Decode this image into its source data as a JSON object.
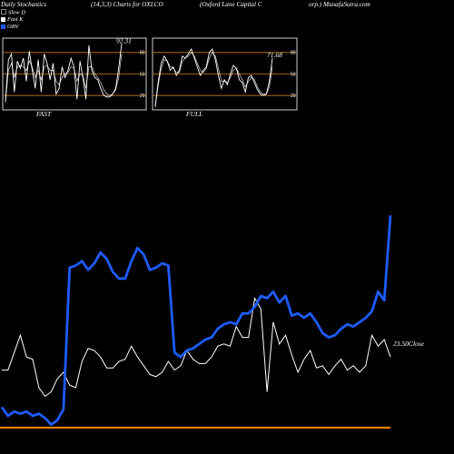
{
  "header": {
    "left": "Daily Stochastics",
    "params": "(14,3,3) Charts for OXLCO",
    "company": "(Oxford Lane  Capital C",
    "right": "orp.) MunafaSutra.com"
  },
  "legend": [
    {
      "label": "Slow  D",
      "color": "#000000"
    },
    {
      "label": "Fast K",
      "color": "#ffffff"
    },
    {
      "label": "OBV",
      "color": "#1e5cff"
    }
  ],
  "colors": {
    "background": "#000000",
    "grid": "#c8781e",
    "stoch": "#ffffff",
    "obv": "#1e5cff",
    "price": "#ffffff"
  },
  "chart_data": [
    {
      "type": "line",
      "panel": "FAST",
      "title": "FAST",
      "ylim": [
        0,
        100
      ],
      "yticks": [
        20,
        50,
        80
      ],
      "last_label": "92.31",
      "series": [
        {
          "name": "Fast K",
          "values": [
            12,
            70,
            78,
            25,
            68,
            58,
            72,
            40,
            82,
            55,
            30,
            70,
            25,
            78,
            65,
            42,
            65,
            22,
            30,
            60,
            45,
            55,
            72,
            60,
            15,
            68,
            45,
            15,
            90,
            55,
            45,
            42,
            30,
            20,
            18,
            18,
            22,
            30,
            58,
            92
          ]
        },
        {
          "name": "Slow  D",
          "values": [
            10,
            55,
            65,
            45,
            60,
            62,
            60,
            55,
            68,
            60,
            45,
            55,
            42,
            60,
            62,
            55,
            55,
            40,
            35,
            45,
            50,
            52,
            60,
            58,
            40,
            50,
            48,
            30,
            60,
            60,
            50,
            45,
            38,
            28,
            22,
            20,
            22,
            28,
            45,
            78
          ]
        }
      ]
    },
    {
      "type": "line",
      "panel": "FULL",
      "title": "FULL",
      "ylim": [
        0,
        100
      ],
      "yticks": [
        20,
        50,
        80
      ],
      "last_label": "71.68",
      "series": [
        {
          "name": "Fast K",
          "values": [
            5,
            40,
            65,
            75,
            68,
            55,
            60,
            48,
            55,
            75,
            72,
            78,
            85,
            72,
            60,
            48,
            55,
            60,
            80,
            85,
            70,
            48,
            30,
            42,
            35,
            50,
            62,
            58,
            42,
            38,
            25,
            45,
            48,
            38,
            28,
            22,
            20,
            22,
            40,
            72
          ]
        },
        {
          "name": "Slow  D",
          "values": [
            3,
            35,
            58,
            70,
            68,
            60,
            58,
            52,
            52,
            68,
            72,
            75,
            80,
            75,
            65,
            55,
            52,
            58,
            72,
            80,
            75,
            58,
            40,
            40,
            38,
            45,
            55,
            58,
            50,
            42,
            32,
            40,
            45,
            42,
            32,
            25,
            22,
            22,
            32,
            60
          ]
        }
      ]
    },
    {
      "type": "line",
      "panel": "main",
      "ylim": [
        0,
        100
      ],
      "close_label": "23.50Close",
      "series": [
        {
          "name": "OBV",
          "values": [
            9,
            5,
            7,
            6,
            7,
            5,
            6,
            4,
            1,
            3,
            8,
            73,
            74,
            76,
            72,
            75,
            80,
            77,
            71,
            68,
            68,
            76,
            82,
            79,
            72,
            73,
            75,
            74,
            34,
            32,
            35,
            36,
            38,
            40,
            41,
            45,
            47,
            48,
            47,
            52,
            52,
            55,
            60,
            59,
            62,
            57,
            60,
            51,
            52,
            50,
            52,
            48,
            43,
            41,
            42,
            45,
            47,
            46,
            48,
            50,
            53,
            62,
            58,
            97
          ]
        },
        {
          "name": "Close",
          "values": [
            26,
            26,
            34,
            42,
            32,
            31,
            18,
            14,
            16,
            22,
            25,
            19,
            18,
            30,
            36,
            35,
            32,
            27,
            27,
            30,
            31,
            37,
            32,
            28,
            24,
            23,
            25,
            30,
            26,
            28,
            35,
            31,
            29,
            29,
            32,
            37,
            38,
            37,
            46,
            41,
            41,
            59,
            54,
            16,
            48,
            38,
            42,
            33,
            25,
            31,
            35,
            27,
            28,
            24,
            28,
            31,
            26,
            28,
            25,
            28,
            42,
            37,
            40,
            32
          ]
        }
      ]
    }
  ]
}
